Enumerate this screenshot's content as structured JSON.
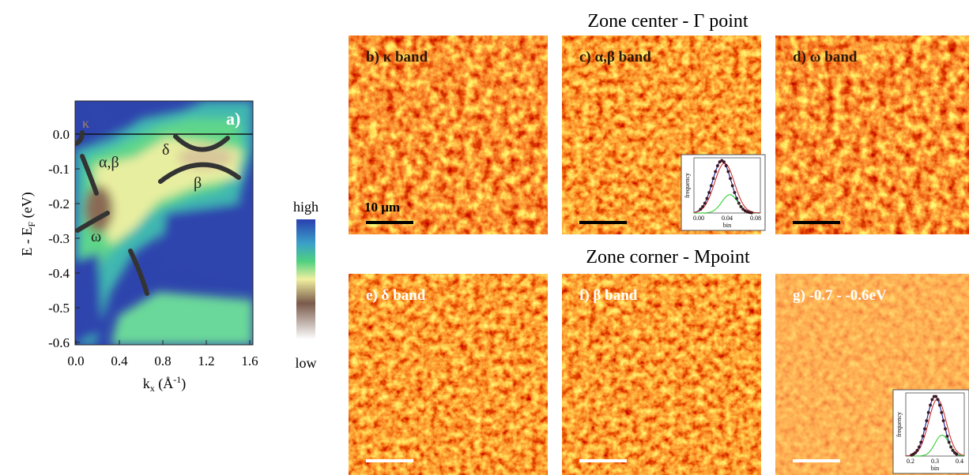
{
  "panel_a": {
    "label": "a)",
    "bands": {
      "kappa": "κ",
      "alpha_beta": "α,β",
      "delta": "δ",
      "beta": "β",
      "omega": "ω"
    },
    "y_label": {
      "main": "E - E",
      "sub": "F",
      "unit": " (eV)"
    },
    "y_ticks": [
      "0.0",
      "-0.1",
      "-0.2",
      "-0.3",
      "-0.4",
      "-0.5",
      "-0.6"
    ],
    "x_label": {
      "main": "k",
      "sub": "x",
      "unit": " (Å",
      "sup": "-1",
      "close": ")"
    },
    "x_ticks": [
      "0.0",
      "0.4",
      "0.8",
      "1.2",
      "1.6"
    ]
  },
  "colorbar": {
    "high": "high",
    "low": "low"
  },
  "top_row": {
    "title": "Zone center - Γ point",
    "panels": [
      "b) κ band",
      "c) α,β band",
      "d) ω band"
    ],
    "scale_bar": "10 μm",
    "inset": {
      "y_label": "frequency",
      "x_label": "bin",
      "x_ticks": [
        "0.00",
        "0.04",
        "0.08"
      ]
    }
  },
  "bottom_row": {
    "title": "Zone corner - Mpoint",
    "panels": [
      "e) δ band",
      "f) β band",
      "g) -0.7 - -0.6eV"
    ],
    "inset": {
      "y_label": "frequency",
      "x_label": "bin",
      "x_ticks": [
        "0.2",
        "0.3",
        "0.4"
      ]
    }
  }
}
